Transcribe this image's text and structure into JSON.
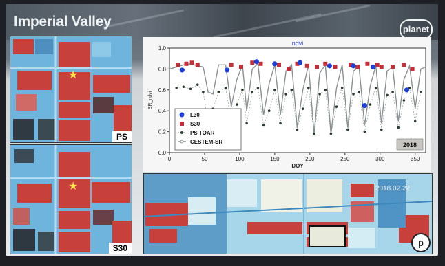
{
  "slide": {
    "title": "Imperial Valley",
    "logo_text": "planet",
    "panel_top_label": "PS",
    "panel_bottom_label": "S30",
    "map_date": "2018.02.22",
    "map_corner_badge": "p"
  },
  "colors": {
    "field_red": "#c8403c",
    "water_blue": "#5aa8d8",
    "l30": "#1f3fd0",
    "s30": "#c0303a",
    "ps_toar": "#2d3d30",
    "cestem": "#8a8f94"
  },
  "chart_data": {
    "type": "line",
    "title": "ndvi",
    "xlabel": "DOY",
    "ylabel": "SR_ndvi",
    "xlim": [
      0,
      365
    ],
    "ylim": [
      0.0,
      1.0
    ],
    "xticks": [
      0,
      50,
      100,
      150,
      200,
      250,
      300,
      350
    ],
    "yticks": [
      0.0,
      0.2,
      0.4,
      0.6,
      0.8,
      1.0
    ],
    "year_badge": "2018",
    "legend_position": "lower-left",
    "series": [
      {
        "name": "L30",
        "kind": "marker-circle",
        "x": [
          18,
          82,
          124,
          150,
          186,
          228,
          262,
          278,
          290,
          338
        ],
        "y": [
          0.79,
          0.79,
          0.87,
          0.85,
          0.86,
          0.83,
          0.83,
          0.45,
          0.82,
          0.6
        ]
      },
      {
        "name": "S30",
        "kind": "marker-square",
        "x": [
          12,
          24,
          32,
          40,
          88,
          102,
          118,
          130,
          156,
          170,
          182,
          196,
          210,
          222,
          236,
          258,
          268,
          282,
          296,
          302,
          318,
          334,
          346
        ],
        "y": [
          0.84,
          0.85,
          0.86,
          0.84,
          0.84,
          0.82,
          0.86,
          0.85,
          0.84,
          0.8,
          0.85,
          0.83,
          0.82,
          0.85,
          0.82,
          0.84,
          0.82,
          0.85,
          0.84,
          0.82,
          0.82,
          0.84,
          0.8
        ]
      },
      {
        "name": "PS TOAR",
        "kind": "marker-dot-line",
        "x": [
          10,
          20,
          30,
          40,
          48,
          55,
          62,
          70,
          80,
          88,
          96,
          104,
          110,
          118,
          126,
          134,
          142,
          150,
          158,
          166,
          174,
          182,
          190,
          198,
          206,
          214,
          222,
          230,
          238,
          246,
          254,
          262,
          270,
          278,
          286,
          294,
          302,
          310,
          318,
          326,
          334,
          342,
          350,
          358
        ],
        "y": [
          0.62,
          0.63,
          0.61,
          0.65,
          0.58,
          0.3,
          0.42,
          0.58,
          0.62,
          0.3,
          0.46,
          0.6,
          0.28,
          0.58,
          0.62,
          0.26,
          0.4,
          0.6,
          0.28,
          0.56,
          0.6,
          0.22,
          0.42,
          0.62,
          0.18,
          0.56,
          0.6,
          0.18,
          0.44,
          0.62,
          0.22,
          0.56,
          0.58,
          0.2,
          0.46,
          0.62,
          0.22,
          0.55,
          0.58,
          0.24,
          0.5,
          0.62,
          0.3,
          0.58
        ]
      },
      {
        "name": "CESTEM-SR",
        "kind": "line",
        "x": [
          0,
          10,
          20,
          30,
          40,
          48,
          55,
          62,
          70,
          80,
          88,
          96,
          104,
          110,
          118,
          126,
          134,
          142,
          150,
          158,
          166,
          174,
          182,
          190,
          198,
          206,
          214,
          222,
          230,
          238,
          246,
          254,
          262,
          270,
          278,
          286,
          294,
          302,
          310,
          318,
          326,
          334,
          342,
          350,
          358,
          365
        ],
        "y": [
          0.8,
          0.82,
          0.84,
          0.85,
          0.83,
          0.82,
          0.58,
          0.56,
          0.84,
          0.84,
          0.44,
          0.7,
          0.84,
          0.4,
          0.8,
          0.85,
          0.36,
          0.66,
          0.84,
          0.36,
          0.78,
          0.84,
          0.24,
          0.6,
          0.84,
          0.18,
          0.76,
          0.84,
          0.18,
          0.62,
          0.84,
          0.24,
          0.78,
          0.82,
          0.26,
          0.64,
          0.83,
          0.28,
          0.78,
          0.82,
          0.3,
          0.7,
          0.83,
          0.42,
          0.8,
          0.82
        ]
      }
    ]
  }
}
